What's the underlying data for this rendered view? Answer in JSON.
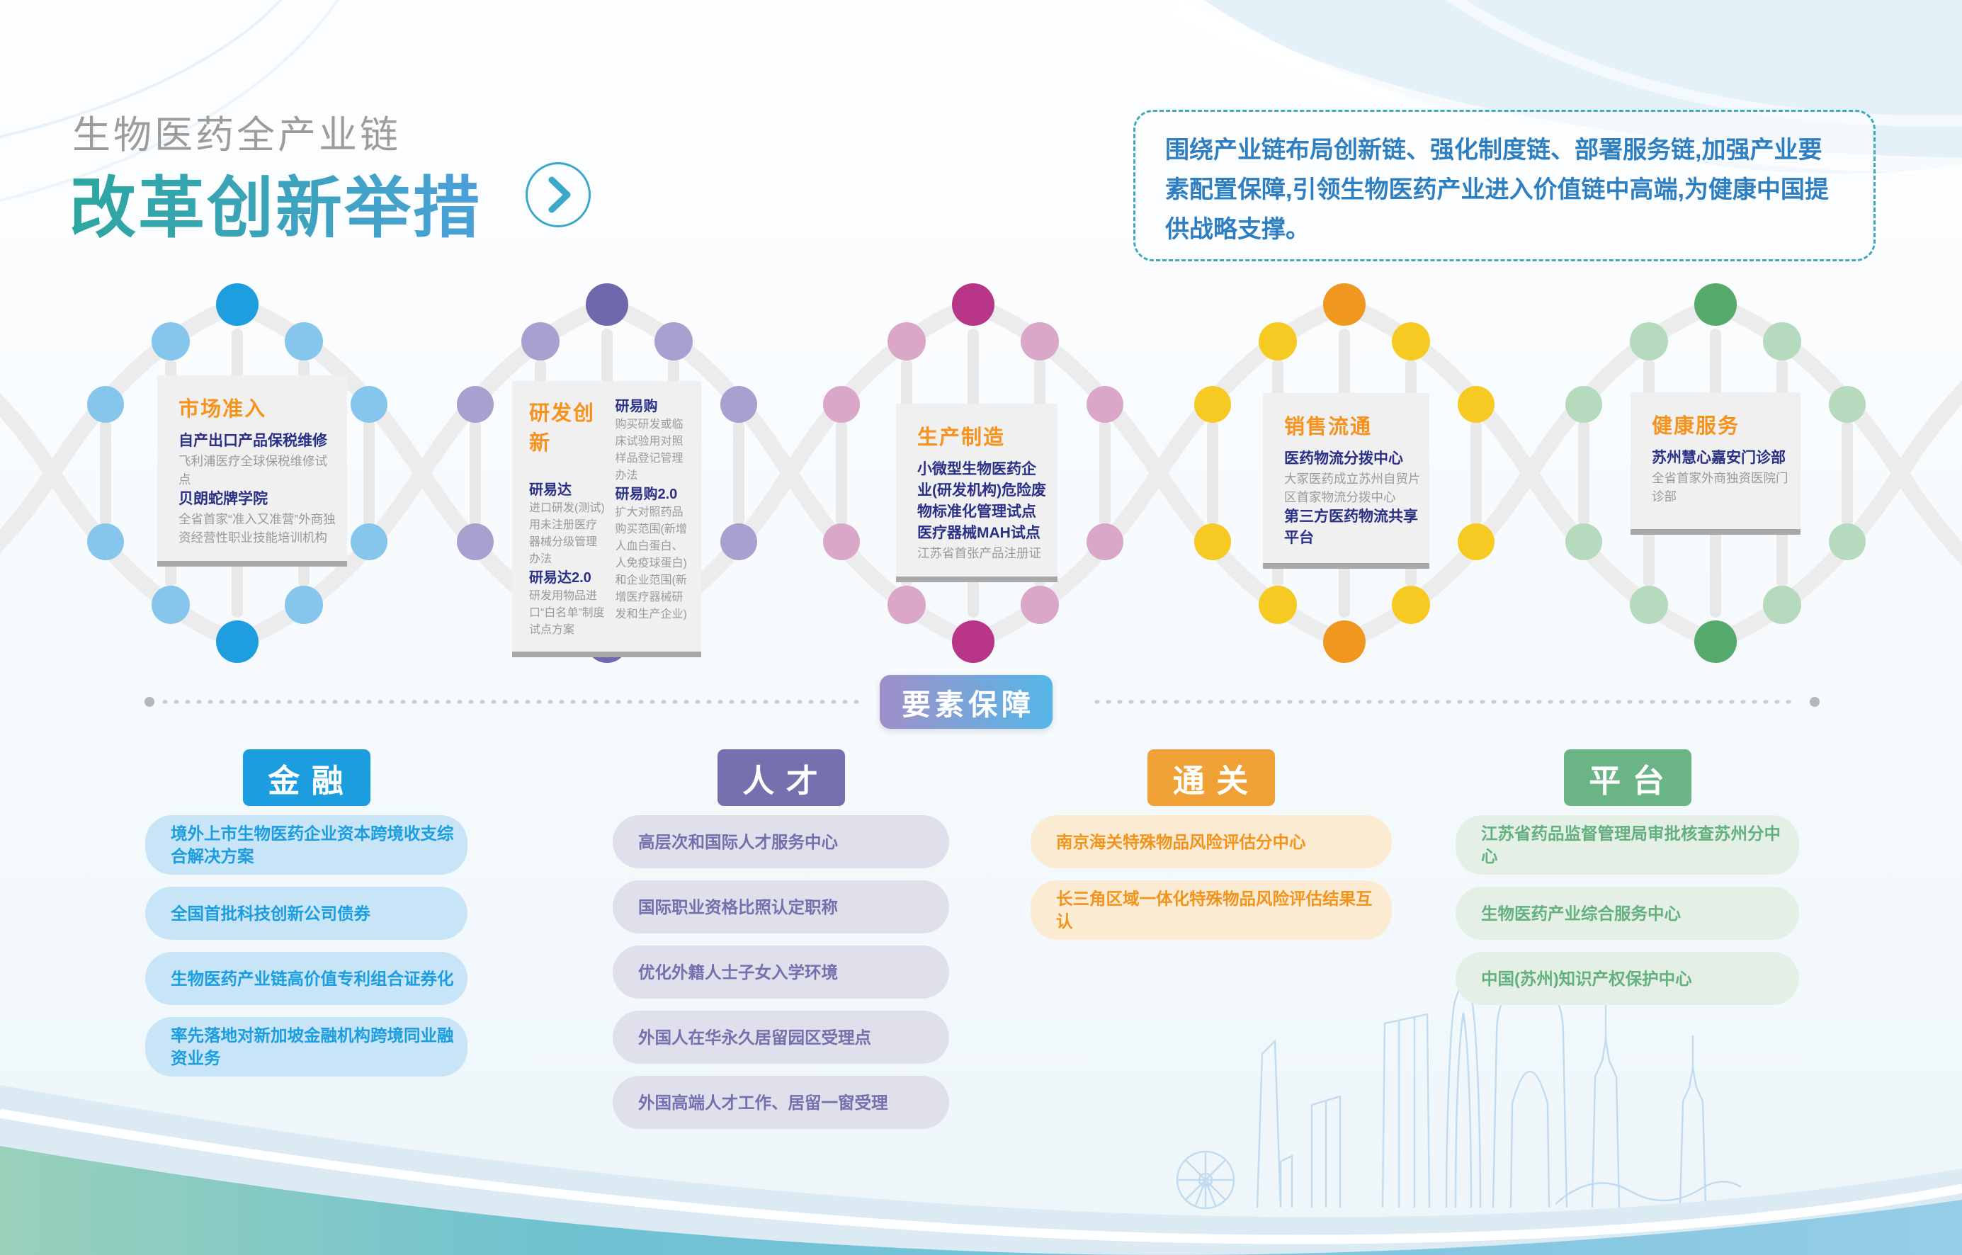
{
  "header": {
    "subtitle": "生物医药全产业链",
    "title": "改革创新举措",
    "subtitle_color": "#9C9C9C",
    "title_gradient": [
      "#2CA79F",
      "#4BA0D8"
    ],
    "arrow_icon": "chevron-right-icon",
    "arrow_color": "#3BA8C9"
  },
  "intro": {
    "text": "围绕产业链布局创新链、强化制度链、部署服务链,加强产业要素配置保障,引领生物医药产业进入价值链中高端,为健康中国提供战略支撑。",
    "text_color": "#2E7FC2",
    "border_color": "#3FA9BC"
  },
  "chain": {
    "heading_color": "#F6921E",
    "item_title_color": "#2B3087",
    "item_desc_color": "#9A9A9A",
    "ribbon_color": "#ECECEC",
    "rung_color": "#E8E8E8",
    "stages": [
      {
        "name": "市场准入",
        "dark": "#1E9EDF",
        "light": "#86C6EC",
        "items": [
          {
            "title": "自产出口产品保税维修",
            "desc": "飞利浦医疗全球保税维修试点"
          },
          {
            "title": "贝朗蛇牌学院",
            "desc": "全省首家“准入又准营”外商独资经营性职业技能培训机构"
          }
        ]
      },
      {
        "name": "研发创新",
        "dark": "#6F68AC",
        "light": "#A8A1CF",
        "col1": [
          {
            "title": "研易达",
            "desc": "进口研发(测试)用未注册医疗器械分级管理办法"
          },
          {
            "title": "研易达2.0",
            "desc": "研发用物品进口“白名单”制度试点方案"
          }
        ],
        "col2": [
          {
            "title": "研易购",
            "desc": "购买研发或临床试验用对照样品登记管理办法"
          },
          {
            "title": "研易购2.0",
            "desc": "扩大对照药品购买范围(新增人血白蛋白、人免疫球蛋白)和企业范围(新增医疗器械研发和生产企业)"
          }
        ]
      },
      {
        "name": "生产制造",
        "dark": "#B93588",
        "light": "#DBA7C8",
        "items": [
          {
            "title": "小微型生物医药企业(研发机构)危险废物标准化管理试点",
            "desc": ""
          },
          {
            "title": "医疗器械MAH试点",
            "desc": "江苏省首张产品注册证"
          }
        ]
      },
      {
        "name": "销售流通",
        "dark": "#F0971F",
        "light": "#F7CA23",
        "items": [
          {
            "title": "医药物流分拨中心",
            "desc": "大冢医药成立苏州自贸片区首家物流分拨中心"
          },
          {
            "title": "第三方医药物流共享平台",
            "desc": ""
          }
        ]
      },
      {
        "name": "健康服务",
        "dark": "#55A96B",
        "light": "#B6DABD",
        "items": [
          {
            "title": "苏州慧心嘉安门诊部",
            "desc": "全省首家外商独资医院门诊部"
          }
        ]
      }
    ]
  },
  "divider": {
    "label": "要素保障",
    "gradient": [
      "#9F90C8",
      "#55B7E8"
    ]
  },
  "pillars": [
    {
      "label": "金 融",
      "header_bg": "#1B9DDF",
      "pill_bg": "#C7E5F6",
      "text_color": "#1B9DDF",
      "items": [
        "境外上市生物医药企业资本跨境收支综合解决方案",
        "全国首批科技创新公司债券",
        "生物医药产业链高价值专利组合证券化",
        "率先落地对新加坡金融机构跨境同业融资业务"
      ]
    },
    {
      "label": "人 才",
      "header_bg": "#7571AE",
      "pill_bg": "#E0DFEC",
      "text_color": "#7470AD",
      "items": [
        "高层次和国际人才服务中心",
        "国际职业资格比照认定职称",
        "优化外籍人士子女入学环境",
        "外国人在华永久居留园区受理点",
        "外国高端人才工作、居留一窗受理"
      ]
    },
    {
      "label": "通 关",
      "header_bg": "#F0A136",
      "pill_bg": "#FCEBD3",
      "text_color": "#F0941D",
      "items": [
        "南京海关特殊物品风险评估分中心",
        "长三角区域一体化特殊物品风险评估结果互认"
      ]
    },
    {
      "label": "平 台",
      "header_bg": "#6BB485",
      "pill_bg": "#E4F0E6",
      "text_color": "#64B07E",
      "items": [
        "江苏省药品监督管理局审批核查苏州分中心",
        "生物医药产业综合服务中心",
        "中国(苏州)知识产权保护中心"
      ]
    }
  ]
}
